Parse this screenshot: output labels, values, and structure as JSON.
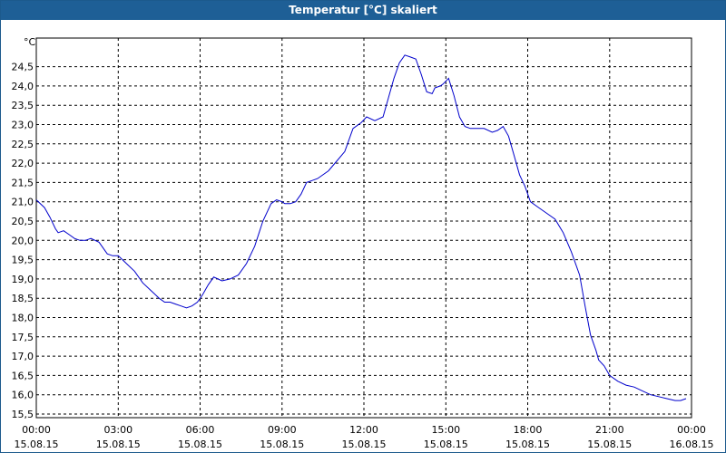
{
  "title": "Temperatur [°C] skaliert",
  "chart_data": {
    "type": "line",
    "ylabel": "°C",
    "ylim": [
      15.5,
      25.0
    ],
    "yticks": [
      "24,5",
      "24,0",
      "23,5",
      "23,0",
      "22,5",
      "22,0",
      "21,5",
      "21,0",
      "20,5",
      "20,0",
      "19,5",
      "19,0",
      "18,5",
      "18,0",
      "17,5",
      "17,0",
      "16,5",
      "16,0",
      "15,5"
    ],
    "xlim_hours": [
      0,
      24
    ],
    "xticks": [
      {
        "time": "00:00",
        "date": "15.08.15"
      },
      {
        "time": "03:00",
        "date": "15.08.15"
      },
      {
        "time": "06:00",
        "date": "15.08.15"
      },
      {
        "time": "09:00",
        "date": "15.08.15"
      },
      {
        "time": "12:00",
        "date": "15.08.15"
      },
      {
        "time": "15:00",
        "date": "15.08.15"
      },
      {
        "time": "18:00",
        "date": "15.08.15"
      },
      {
        "time": "21:00",
        "date": "15.08.15"
      },
      {
        "time": "00:00",
        "date": "16.08.15"
      }
    ],
    "grid": true,
    "line_color": "#0000cc",
    "series": [
      {
        "x": [
          0,
          0.3,
          0.5,
          0.7,
          0.8,
          1.0,
          1.2,
          1.4,
          1.6,
          1.8,
          2.0,
          2.3,
          2.6,
          2.8,
          3.0,
          3.3,
          3.6,
          3.9,
          4.2,
          4.5,
          4.7,
          4.9,
          5.1,
          5.3,
          5.5,
          5.7,
          5.9,
          6.1,
          6.3,
          6.5,
          6.8,
          7.1,
          7.4,
          7.7,
          8.0,
          8.3,
          8.6,
          8.8,
          9.0,
          9.1,
          9.3,
          9.5,
          9.7,
          9.9,
          10.1,
          10.3,
          10.5,
          10.7,
          11.0,
          11.3,
          11.6,
          11.9,
          12.1,
          12.4,
          12.7,
          12.9,
          13.1,
          13.3,
          13.5,
          13.7,
          13.9,
          14.1,
          14.3,
          14.5,
          14.6,
          14.8,
          14.9,
          15.1,
          15.3,
          15.5,
          15.7,
          15.9,
          16.1,
          16.4,
          16.7,
          16.9,
          17.1,
          17.3,
          17.5,
          17.7,
          17.9,
          18.1,
          18.4,
          18.7,
          19.0,
          19.3,
          19.6,
          19.9,
          20.1,
          20.3,
          20.5,
          20.6,
          20.8,
          21.0,
          21.3,
          21.6,
          21.9,
          22.2,
          22.5,
          22.8,
          23.1,
          23.4,
          23.6,
          23.8
        ],
        "y": [
          21.05,
          20.85,
          20.6,
          20.3,
          20.2,
          20.25,
          20.15,
          20.05,
          20.0,
          20.0,
          20.05,
          19.95,
          19.65,
          19.6,
          19.6,
          19.4,
          19.2,
          18.9,
          18.7,
          18.5,
          18.4,
          18.4,
          18.35,
          18.3,
          18.25,
          18.3,
          18.4,
          18.6,
          18.85,
          19.05,
          18.95,
          19.0,
          19.1,
          19.4,
          19.85,
          20.5,
          20.95,
          21.05,
          21.0,
          20.95,
          20.95,
          21.0,
          21.2,
          21.5,
          21.55,
          21.6,
          21.7,
          21.8,
          22.05,
          22.3,
          22.9,
          23.05,
          23.2,
          23.1,
          23.2,
          23.7,
          24.2,
          24.6,
          24.8,
          24.75,
          24.7,
          24.3,
          23.85,
          23.8,
          23.95,
          24.0,
          24.05,
          24.2,
          23.75,
          23.2,
          22.95,
          22.9,
          22.9,
          22.9,
          22.8,
          22.85,
          22.95,
          22.7,
          22.2,
          21.7,
          21.4,
          21.0,
          20.85,
          20.7,
          20.55,
          20.2,
          19.7,
          19.1,
          18.3,
          17.55,
          17.15,
          16.9,
          16.75,
          16.5,
          16.35,
          16.25,
          16.2,
          16.1,
          16.0,
          15.95,
          15.9,
          15.85,
          15.85,
          15.9
        ]
      }
    ]
  }
}
